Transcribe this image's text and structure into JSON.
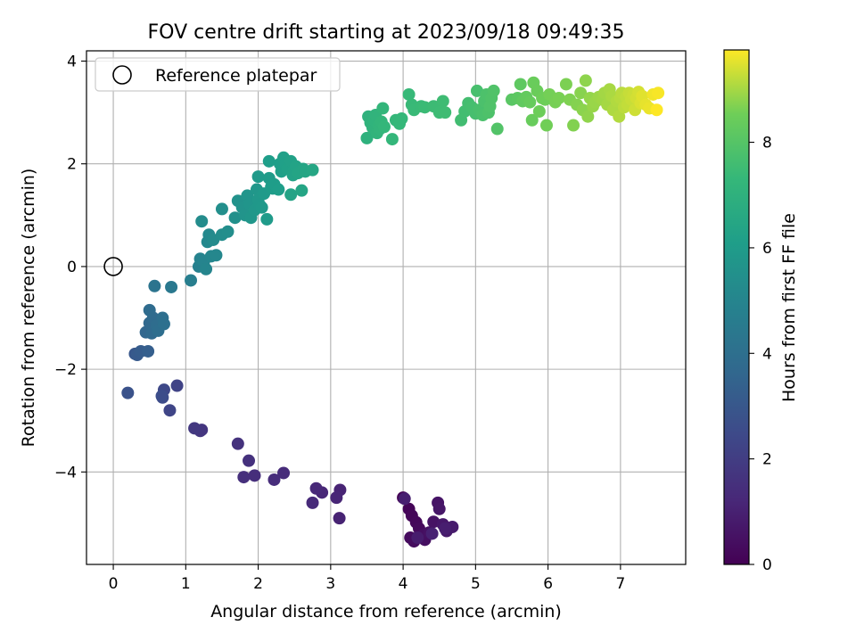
{
  "chart_data": {
    "type": "scatter",
    "title": "FOV centre drift starting at 2023/09/18 09:49:35",
    "xlabel": "Angular distance from reference (arcmin)",
    "ylabel": "Rotation from reference (arcmin)",
    "xlim": [
      -0.37,
      7.9
    ],
    "ylim": [
      -5.8,
      4.2
    ],
    "xticks": [
      0,
      1,
      2,
      3,
      4,
      5,
      6,
      7
    ],
    "yticks": [
      -4,
      -2,
      0,
      2,
      4
    ],
    "xtick_labels": [
      "0",
      "1",
      "2",
      "3",
      "4",
      "5",
      "6",
      "7"
    ],
    "ytick_labels": [
      "−4",
      "−2",
      "0",
      "2",
      "4"
    ],
    "grid": true,
    "legend": {
      "position": "top-left",
      "entries": [
        "Reference platepar"
      ]
    },
    "reference_point": {
      "x": 0,
      "y": 0,
      "label": "Reference platepar"
    },
    "colorbar": {
      "label": "Hours from first FF file",
      "range": [
        0,
        9.75
      ],
      "ticks": [
        0,
        2,
        4,
        6,
        8
      ],
      "tick_labels": [
        "0",
        "2",
        "4",
        "6",
        "8"
      ],
      "colormap": "viridis"
    },
    "points": [
      {
        "x": 4.0,
        "y": -4.5,
        "h": 0.05
      },
      {
        "x": 4.08,
        "y": -4.72,
        "h": 0.1
      },
      {
        "x": 4.12,
        "y": -4.85,
        "h": 0.15
      },
      {
        "x": 4.18,
        "y": -4.98,
        "h": 0.2
      },
      {
        "x": 4.22,
        "y": -5.1,
        "h": 0.25
      },
      {
        "x": 4.1,
        "y": -5.28,
        "h": 0.3
      },
      {
        "x": 4.15,
        "y": -5.35,
        "h": 0.35
      },
      {
        "x": 4.28,
        "y": -5.22,
        "h": 0.4
      },
      {
        "x": 4.3,
        "y": -5.32,
        "h": 0.45
      },
      {
        "x": 4.36,
        "y": -5.18,
        "h": 0.5
      },
      {
        "x": 4.42,
        "y": -4.97,
        "h": 0.55
      },
      {
        "x": 4.48,
        "y": -4.6,
        "h": 0.6
      },
      {
        "x": 4.5,
        "y": -4.72,
        "h": 0.65
      },
      {
        "x": 4.55,
        "y": -5.02,
        "h": 0.7
      },
      {
        "x": 4.6,
        "y": -5.15,
        "h": 0.75
      },
      {
        "x": 4.68,
        "y": -5.07,
        "h": 0.8
      },
      {
        "x": 4.2,
        "y": -5.28,
        "h": 0.85
      },
      {
        "x": 4.58,
        "y": -5.1,
        "h": 0.9
      },
      {
        "x": 4.02,
        "y": -4.52,
        "h": 0.95
      },
      {
        "x": 4.4,
        "y": -5.2,
        "h": 1.0
      },
      {
        "x": 3.12,
        "y": -4.9,
        "h": 1.05
      },
      {
        "x": 3.13,
        "y": -4.35,
        "h": 1.1
      },
      {
        "x": 3.08,
        "y": -4.5,
        "h": 1.15
      },
      {
        "x": 2.88,
        "y": -4.4,
        "h": 1.2
      },
      {
        "x": 2.8,
        "y": -4.32,
        "h": 1.25
      },
      {
        "x": 2.75,
        "y": -4.6,
        "h": 1.3
      },
      {
        "x": 2.35,
        "y": -4.02,
        "h": 1.35
      },
      {
        "x": 2.22,
        "y": -4.15,
        "h": 1.4
      },
      {
        "x": 1.95,
        "y": -4.07,
        "h": 1.45
      },
      {
        "x": 1.8,
        "y": -4.1,
        "h": 1.5
      },
      {
        "x": 1.87,
        "y": -3.78,
        "h": 1.55
      },
      {
        "x": 1.72,
        "y": -3.45,
        "h": 1.6
      },
      {
        "x": 1.22,
        "y": -3.18,
        "h": 1.7
      },
      {
        "x": 1.2,
        "y": -3.2,
        "h": 1.75
      },
      {
        "x": 1.12,
        "y": -3.15,
        "h": 1.8
      },
      {
        "x": 0.88,
        "y": -2.32,
        "h": 2.2
      },
      {
        "x": 0.78,
        "y": -2.8,
        "h": 2.3
      },
      {
        "x": 0.7,
        "y": -2.4,
        "h": 2.4
      },
      {
        "x": 0.68,
        "y": -2.55,
        "h": 2.5
      },
      {
        "x": 0.67,
        "y": -2.52,
        "h": 2.6
      },
      {
        "x": 0.2,
        "y": -2.46,
        "h": 2.8
      },
      {
        "x": 0.3,
        "y": -1.7,
        "h": 3.0
      },
      {
        "x": 0.33,
        "y": -1.72,
        "h": 3.1
      },
      {
        "x": 0.38,
        "y": -1.65,
        "h": 3.2
      },
      {
        "x": 0.48,
        "y": -1.65,
        "h": 3.3
      },
      {
        "x": 0.45,
        "y": -1.28,
        "h": 3.6
      },
      {
        "x": 0.5,
        "y": -1.1,
        "h": 3.7
      },
      {
        "x": 0.53,
        "y": -1.3,
        "h": 3.75
      },
      {
        "x": 0.55,
        "y": -1.0,
        "h": 3.8
      },
      {
        "x": 0.5,
        "y": -0.85,
        "h": 3.85
      },
      {
        "x": 0.6,
        "y": -1.15,
        "h": 3.9
      },
      {
        "x": 0.62,
        "y": -1.25,
        "h": 3.95
      },
      {
        "x": 0.68,
        "y": -1.0,
        "h": 4.0
      },
      {
        "x": 0.7,
        "y": -1.12,
        "h": 4.05
      },
      {
        "x": 0.57,
        "y": -0.38,
        "h": 4.2
      },
      {
        "x": 0.8,
        "y": -0.4,
        "h": 4.4
      },
      {
        "x": 1.07,
        "y": -0.27,
        "h": 4.7
      },
      {
        "x": 1.18,
        "y": 0.0,
        "h": 4.8
      },
      {
        "x": 1.2,
        "y": 0.15,
        "h": 4.9
      },
      {
        "x": 1.25,
        "y": 0.1,
        "h": 4.95
      },
      {
        "x": 1.28,
        "y": -0.05,
        "h": 5.0
      },
      {
        "x": 1.35,
        "y": 0.2,
        "h": 5.05
      },
      {
        "x": 1.42,
        "y": 0.22,
        "h": 5.1
      },
      {
        "x": 1.3,
        "y": 0.48,
        "h": 5.15
      },
      {
        "x": 1.32,
        "y": 0.62,
        "h": 5.2
      },
      {
        "x": 1.38,
        "y": 0.52,
        "h": 5.25
      },
      {
        "x": 1.22,
        "y": 0.88,
        "h": 5.3
      },
      {
        "x": 1.5,
        "y": 0.62,
        "h": 5.35
      },
      {
        "x": 1.58,
        "y": 0.68,
        "h": 5.4
      },
      {
        "x": 1.5,
        "y": 1.12,
        "h": 5.45
      },
      {
        "x": 1.68,
        "y": 0.95,
        "h": 5.5
      },
      {
        "x": 1.72,
        "y": 1.28,
        "h": 5.55
      },
      {
        "x": 1.78,
        "y": 1.15,
        "h": 5.6
      },
      {
        "x": 1.82,
        "y": 1.0,
        "h": 5.65
      },
      {
        "x": 1.85,
        "y": 1.38,
        "h": 5.7
      },
      {
        "x": 1.88,
        "y": 1.22,
        "h": 5.72
      },
      {
        "x": 1.9,
        "y": 0.95,
        "h": 5.75
      },
      {
        "x": 1.95,
        "y": 1.1,
        "h": 5.78
      },
      {
        "x": 1.98,
        "y": 1.5,
        "h": 5.8
      },
      {
        "x": 2.0,
        "y": 1.3,
        "h": 5.82
      },
      {
        "x": 2.02,
        "y": 1.2,
        "h": 5.85
      },
      {
        "x": 2.05,
        "y": 1.15,
        "h": 5.88
      },
      {
        "x": 2.08,
        "y": 1.42,
        "h": 5.9
      },
      {
        "x": 2.0,
        "y": 1.75,
        "h": 5.92
      },
      {
        "x": 2.12,
        "y": 0.92,
        "h": 5.95
      },
      {
        "x": 2.15,
        "y": 1.72,
        "h": 5.98
      },
      {
        "x": 2.18,
        "y": 1.55,
        "h": 6.0
      },
      {
        "x": 2.2,
        "y": 1.52,
        "h": 6.02
      },
      {
        "x": 2.22,
        "y": 1.6,
        "h": 6.05
      },
      {
        "x": 2.15,
        "y": 2.05,
        "h": 6.08
      },
      {
        "x": 2.28,
        "y": 1.5,
        "h": 6.1
      },
      {
        "x": 2.3,
        "y": 2.0,
        "h": 6.12
      },
      {
        "x": 2.32,
        "y": 1.85,
        "h": 6.15
      },
      {
        "x": 2.35,
        "y": 2.12,
        "h": 6.18
      },
      {
        "x": 2.38,
        "y": 2.0,
        "h": 6.2
      },
      {
        "x": 2.4,
        "y": 1.9,
        "h": 6.22
      },
      {
        "x": 2.45,
        "y": 2.05,
        "h": 6.25
      },
      {
        "x": 2.5,
        "y": 1.88,
        "h": 6.28
      },
      {
        "x": 2.48,
        "y": 1.78,
        "h": 6.3
      },
      {
        "x": 2.52,
        "y": 1.95,
        "h": 6.32
      },
      {
        "x": 2.45,
        "y": 1.4,
        "h": 6.35
      },
      {
        "x": 2.55,
        "y": 1.82,
        "h": 6.38
      },
      {
        "x": 2.62,
        "y": 1.9,
        "h": 6.4
      },
      {
        "x": 2.6,
        "y": 1.48,
        "h": 6.42
      },
      {
        "x": 2.65,
        "y": 1.85,
        "h": 6.45
      },
      {
        "x": 2.75,
        "y": 1.88,
        "h": 6.5
      },
      {
        "x": 3.5,
        "y": 2.5,
        "h": 7.0
      },
      {
        "x": 3.52,
        "y": 2.92,
        "h": 7.02
      },
      {
        "x": 3.55,
        "y": 2.8,
        "h": 7.05
      },
      {
        "x": 3.58,
        "y": 2.7,
        "h": 7.08
      },
      {
        "x": 3.6,
        "y": 2.85,
        "h": 7.1
      },
      {
        "x": 3.62,
        "y": 2.95,
        "h": 7.12
      },
      {
        "x": 3.64,
        "y": 2.6,
        "h": 7.14
      },
      {
        "x": 3.66,
        "y": 2.75,
        "h": 7.16
      },
      {
        "x": 3.68,
        "y": 2.68,
        "h": 7.18
      },
      {
        "x": 3.7,
        "y": 2.82,
        "h": 7.2
      },
      {
        "x": 3.72,
        "y": 3.08,
        "h": 7.22
      },
      {
        "x": 3.74,
        "y": 2.72,
        "h": 7.24
      },
      {
        "x": 3.85,
        "y": 2.48,
        "h": 7.26
      },
      {
        "x": 3.9,
        "y": 2.85,
        "h": 7.28
      },
      {
        "x": 3.95,
        "y": 2.78,
        "h": 7.3
      },
      {
        "x": 3.98,
        "y": 2.88,
        "h": 7.32
      },
      {
        "x": 4.08,
        "y": 3.35,
        "h": 7.35
      },
      {
        "x": 4.12,
        "y": 3.15,
        "h": 7.38
      },
      {
        "x": 4.15,
        "y": 3.05,
        "h": 7.4
      },
      {
        "x": 4.25,
        "y": 3.12,
        "h": 7.42
      },
      {
        "x": 4.3,
        "y": 3.1,
        "h": 7.45
      },
      {
        "x": 4.42,
        "y": 3.12,
        "h": 7.48
      },
      {
        "x": 4.5,
        "y": 3.0,
        "h": 7.5
      },
      {
        "x": 4.55,
        "y": 3.22,
        "h": 7.52
      },
      {
        "x": 4.58,
        "y": 3.0,
        "h": 7.55
      },
      {
        "x": 4.8,
        "y": 2.85,
        "h": 7.6
      },
      {
        "x": 4.85,
        "y": 3.02,
        "h": 7.62
      },
      {
        "x": 4.9,
        "y": 3.18,
        "h": 7.65
      },
      {
        "x": 4.95,
        "y": 3.1,
        "h": 7.68
      },
      {
        "x": 5.0,
        "y": 2.98,
        "h": 7.7
      },
      {
        "x": 5.02,
        "y": 3.42,
        "h": 7.72
      },
      {
        "x": 5.05,
        "y": 3.05,
        "h": 7.75
      },
      {
        "x": 5.1,
        "y": 2.95,
        "h": 7.78
      },
      {
        "x": 5.12,
        "y": 3.22,
        "h": 7.8
      },
      {
        "x": 5.15,
        "y": 3.35,
        "h": 7.82
      },
      {
        "x": 5.18,
        "y": 3.0,
        "h": 7.85
      },
      {
        "x": 5.2,
        "y": 3.12,
        "h": 7.88
      },
      {
        "x": 5.22,
        "y": 3.28,
        "h": 7.9
      },
      {
        "x": 5.25,
        "y": 3.42,
        "h": 7.92
      },
      {
        "x": 5.3,
        "y": 2.68,
        "h": 7.95
      },
      {
        "x": 5.5,
        "y": 3.25,
        "h": 8.1
      },
      {
        "x": 5.58,
        "y": 3.28,
        "h": 8.15
      },
      {
        "x": 5.62,
        "y": 3.55,
        "h": 8.2
      },
      {
        "x": 5.65,
        "y": 3.22,
        "h": 8.25
      },
      {
        "x": 5.7,
        "y": 3.3,
        "h": 8.3
      },
      {
        "x": 5.75,
        "y": 3.2,
        "h": 8.35
      },
      {
        "x": 5.78,
        "y": 2.85,
        "h": 8.4
      },
      {
        "x": 5.8,
        "y": 3.58,
        "h": 8.42
      },
      {
        "x": 5.85,
        "y": 3.42,
        "h": 8.45
      },
      {
        "x": 5.88,
        "y": 3.02,
        "h": 8.48
      },
      {
        "x": 5.92,
        "y": 3.28,
        "h": 8.5
      },
      {
        "x": 5.96,
        "y": 3.25,
        "h": 8.52
      },
      {
        "x": 5.98,
        "y": 2.75,
        "h": 8.55
      },
      {
        "x": 6.02,
        "y": 3.35,
        "h": 8.58
      },
      {
        "x": 6.1,
        "y": 3.2,
        "h": 8.6
      },
      {
        "x": 6.15,
        "y": 3.28,
        "h": 8.62
      },
      {
        "x": 6.25,
        "y": 3.55,
        "h": 8.65
      },
      {
        "x": 6.3,
        "y": 3.25,
        "h": 8.68
      },
      {
        "x": 6.35,
        "y": 2.75,
        "h": 8.7
      },
      {
        "x": 6.4,
        "y": 3.15,
        "h": 8.72
      },
      {
        "x": 6.45,
        "y": 3.38,
        "h": 8.75
      },
      {
        "x": 6.48,
        "y": 3.05,
        "h": 8.78
      },
      {
        "x": 6.52,
        "y": 3.62,
        "h": 8.8
      },
      {
        "x": 6.55,
        "y": 2.92,
        "h": 8.82
      },
      {
        "x": 6.58,
        "y": 3.28,
        "h": 8.85
      },
      {
        "x": 6.62,
        "y": 3.12,
        "h": 8.88
      },
      {
        "x": 6.65,
        "y": 3.2,
        "h": 8.9
      },
      {
        "x": 6.7,
        "y": 3.3,
        "h": 8.92
      },
      {
        "x": 6.75,
        "y": 3.25,
        "h": 8.95
      },
      {
        "x": 6.78,
        "y": 3.38,
        "h": 8.98
      },
      {
        "x": 6.82,
        "y": 3.15,
        "h": 9.0
      },
      {
        "x": 6.85,
        "y": 3.45,
        "h": 9.02
      },
      {
        "x": 6.88,
        "y": 3.32,
        "h": 9.05
      },
      {
        "x": 6.9,
        "y": 3.05,
        "h": 9.08
      },
      {
        "x": 6.95,
        "y": 3.22,
        "h": 9.1
      },
      {
        "x": 6.98,
        "y": 2.92,
        "h": 9.12
      },
      {
        "x": 7.0,
        "y": 3.28,
        "h": 9.15
      },
      {
        "x": 7.02,
        "y": 3.38,
        "h": 9.18
      },
      {
        "x": 7.05,
        "y": 3.1,
        "h": 9.2
      },
      {
        "x": 7.08,
        "y": 3.3,
        "h": 9.22
      },
      {
        "x": 7.1,
        "y": 3.15,
        "h": 9.25
      },
      {
        "x": 7.12,
        "y": 3.38,
        "h": 9.28
      },
      {
        "x": 7.15,
        "y": 3.25,
        "h": 9.3
      },
      {
        "x": 7.18,
        "y": 3.35,
        "h": 9.32
      },
      {
        "x": 7.2,
        "y": 3.05,
        "h": 9.35
      },
      {
        "x": 7.22,
        "y": 3.28,
        "h": 9.38
      },
      {
        "x": 7.25,
        "y": 3.4,
        "h": 9.4
      },
      {
        "x": 7.28,
        "y": 3.18,
        "h": 9.45
      },
      {
        "x": 7.3,
        "y": 3.32,
        "h": 9.5
      },
      {
        "x": 7.35,
        "y": 3.15,
        "h": 9.55
      },
      {
        "x": 7.4,
        "y": 3.08,
        "h": 9.6
      },
      {
        "x": 7.45,
        "y": 3.35,
        "h": 9.65
      },
      {
        "x": 7.52,
        "y": 3.38,
        "h": 9.7
      },
      {
        "x": 7.5,
        "y": 3.05,
        "h": 9.75
      }
    ]
  }
}
